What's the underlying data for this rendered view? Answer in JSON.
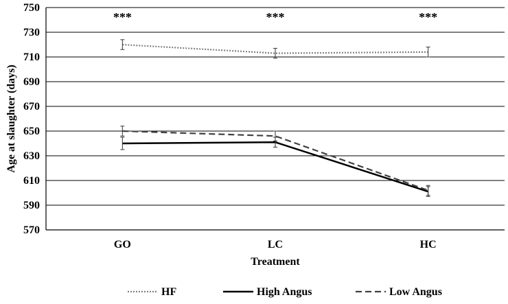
{
  "chart_data": {
    "type": "line",
    "title": "",
    "xlabel": "Treatment",
    "ylabel": "Age at slaughter (days)",
    "categories": [
      "GO",
      "LC",
      "HC"
    ],
    "ylim": [
      570,
      750
    ],
    "yticks": [
      570,
      590,
      610,
      630,
      650,
      670,
      690,
      710,
      730,
      750
    ],
    "grid": true,
    "legend_position": "bottom",
    "series": [
      {
        "name": "HF",
        "style": "dotted",
        "color": "#808080",
        "values": [
          720,
          713,
          714
        ],
        "error": [
          4,
          4,
          4
        ]
      },
      {
        "name": "High Angus",
        "style": "solid",
        "color": "#000000",
        "values": [
          640,
          641,
          601
        ],
        "error": [
          5,
          4,
          4
        ]
      },
      {
        "name": "Low Angus",
        "style": "dashed",
        "color": "#404040",
        "values": [
          650,
          646,
          602
        ],
        "error": [
          4,
          4,
          4
        ]
      }
    ],
    "annotations": [
      "***",
      "***",
      "***"
    ]
  }
}
